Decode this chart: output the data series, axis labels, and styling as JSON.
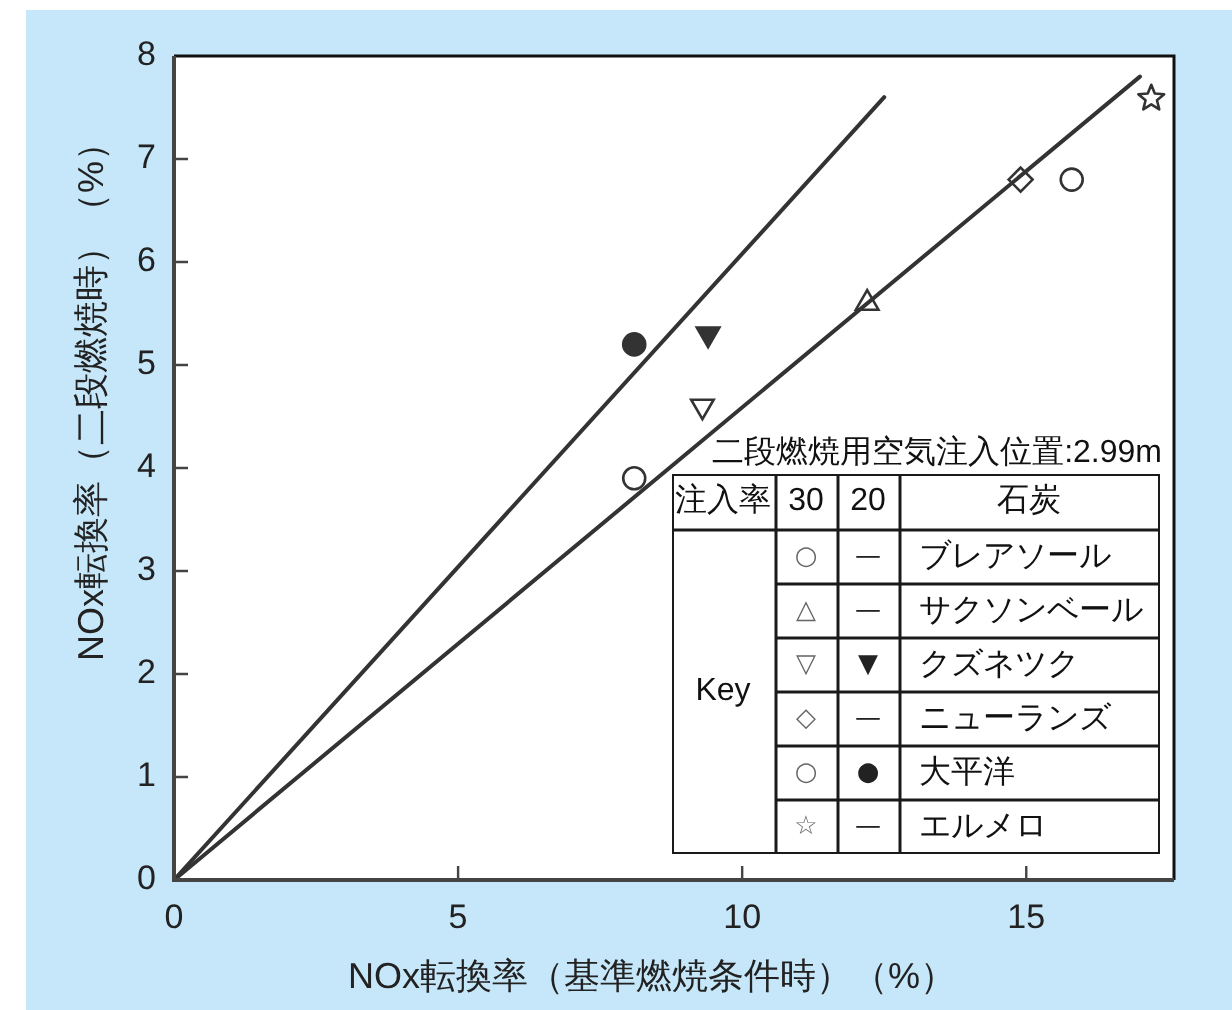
{
  "chart_data": {
    "type": "scatter",
    "xlabel": "NOx転換率（基準燃焼条件時）（%）",
    "ylabel": "NOx転換率（二段燃焼時）（%）",
    "legend_title": "二段燃焼用空気注入位置:2.99m",
    "annotations": [
      "注入率",
      "30",
      "20",
      "石炭",
      "Key",
      "○",
      "—",
      "ブレアソール",
      "△",
      "—",
      "サクソンベール",
      "▽",
      "▼",
      "クズネツク",
      "◇",
      "—",
      "ニューランズ",
      "○",
      "●",
      "大平洋",
      "☆",
      "—",
      "エルメロ"
    ],
    "xlim": [
      0,
      17.6
    ],
    "ylim": [
      0,
      8
    ],
    "xticks": [
      0,
      5,
      10,
      15
    ],
    "yticks": [
      0,
      1,
      2,
      3,
      4,
      5,
      6,
      7,
      8
    ],
    "series": [
      {
        "marker": "circle",
        "color": "#333333",
        "x": [
          15.8,
          null
        ],
        "values": [
          6.8,
          null
        ]
      },
      {
        "marker": "triangle",
        "color": "#333333",
        "x": [
          12.2,
          null
        ],
        "values": [
          5.6,
          null
        ]
      },
      {
        "marker": "triangle-down",
        "color": "#333333",
        "x": [
          9.3,
          9.4
        ],
        "values": [
          4.6,
          5.3
        ]
      },
      {
        "marker": "diamond",
        "color": "#333333",
        "x": [
          14.9,
          null
        ],
        "values": [
          6.8,
          null
        ]
      },
      {
        "marker": "circle",
        "color": "#333333",
        "x": [
          8.1,
          8.1
        ],
        "values": [
          3.9,
          5.2
        ]
      },
      {
        "marker": "star",
        "color": "#333333",
        "x": [
          17.2,
          null
        ],
        "values": [
          7.6,
          null
        ]
      },
      {
        "type": "line",
        "color": "#333333",
        "x": [
          0,
          12.5
        ],
        "values": [
          0,
          7.6
        ]
      },
      {
        "type": "line",
        "color": "#333333",
        "x": [
          0,
          17.0
        ],
        "values": [
          0,
          7.8
        ]
      }
    ]
  }
}
